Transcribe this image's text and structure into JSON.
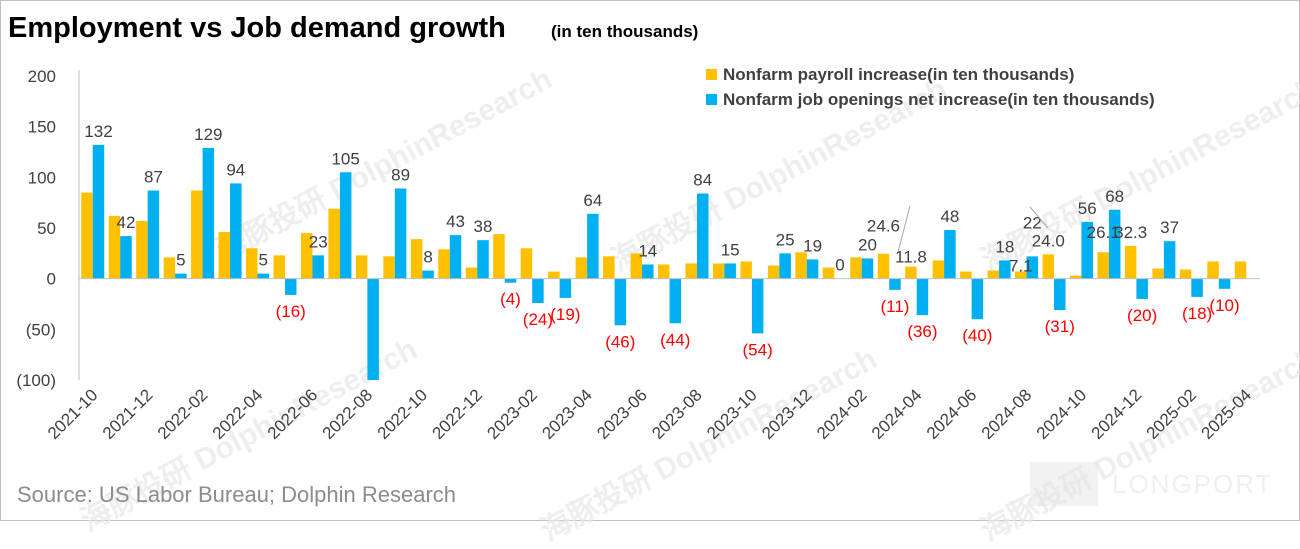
{
  "chart_data": {
    "type": "bar",
    "title": "Employment vs Job demand growth",
    "subtitle": "(in ten thousands)",
    "source": "Source: US Labor Bureau; Dolphin Research",
    "watermarks": [
      "海豚投研",
      "DolphinResearch",
      "LONGPORT"
    ],
    "ylim": [
      -100,
      200
    ],
    "yticks": [
      200,
      150,
      100,
      50,
      0,
      -50,
      -100
    ],
    "ytick_labels": [
      "200",
      "150",
      "100",
      "50",
      "0",
      "(50)",
      "(100)"
    ],
    "legend_position": "top-right",
    "grid": false,
    "colors": {
      "payroll": "#FFC000",
      "openings": "#00B0F0",
      "negative_label": "#FF0000",
      "label": "#404040"
    },
    "categories": [
      "2021-10",
      "2021-11",
      "2021-12",
      "2022-01",
      "2022-02",
      "2022-03",
      "2022-04",
      "2022-05",
      "2022-06",
      "2022-07",
      "2022-08",
      "2022-09",
      "2022-10",
      "2022-11",
      "2022-12",
      "2023-01",
      "2023-02",
      "2023-03",
      "2023-04",
      "2023-05",
      "2023-06",
      "2023-07",
      "2023-08",
      "2023-09",
      "2023-10",
      "2023-11",
      "2023-12",
      "2024-01",
      "2024-02",
      "2024-03",
      "2024-04",
      "2024-05",
      "2024-06",
      "2024-07",
      "2024-08",
      "2024-09",
      "2024-10",
      "2024-11",
      "2024-12",
      "2025-01",
      "2025-02",
      "2025-03",
      "2025-04"
    ],
    "x_tick_labels": [
      "2021-10",
      "2021-12",
      "2022-02",
      "2022-04",
      "2022-06",
      "2022-08",
      "2022-10",
      "2022-12",
      "2023-02",
      "2023-04",
      "2023-06",
      "2023-08",
      "2023-10",
      "2023-12",
      "2024-02",
      "2024-04",
      "2024-06",
      "2024-08",
      "2024-10",
      "2024-12",
      "2025-02",
      "2025-04"
    ],
    "series": [
      {
        "name": "Nonfarm payroll increase(in ten thousands)",
        "values": [
          85,
          62,
          57,
          21,
          87,
          46,
          30,
          23,
          45,
          69,
          23,
          22,
          39,
          29,
          11,
          44,
          30,
          7,
          21,
          22,
          25,
          14,
          15,
          15,
          17,
          13,
          26,
          11,
          21,
          24.6,
          11.8,
          18,
          7,
          8,
          7.1,
          24.0,
          3,
          26.1,
          32.3,
          10,
          9,
          17,
          17
        ]
      },
      {
        "name": "Nonfarm job openings net increase(in ten thousands)",
        "values": [
          132,
          42,
          87,
          5,
          129,
          94,
          5,
          -16,
          23,
          105,
          -100,
          89,
          8,
          43,
          38,
          -4,
          -24,
          -19,
          64,
          -46,
          14,
          -44,
          84,
          15,
          -54,
          25,
          19,
          0,
          20,
          -11,
          -36,
          48,
          -40,
          18,
          22,
          -31,
          56,
          68,
          -20,
          37,
          -18,
          -10,
          null
        ]
      }
    ],
    "data_labels": [
      {
        "i": 0,
        "s": 1,
        "text": "132"
      },
      {
        "i": 1,
        "s": 1,
        "text": "42"
      },
      {
        "i": 2,
        "s": 1,
        "text": "87"
      },
      {
        "i": 3,
        "s": 1,
        "text": "5"
      },
      {
        "i": 4,
        "s": 1,
        "text": "129"
      },
      {
        "i": 5,
        "s": 1,
        "text": "94"
      },
      {
        "i": 6,
        "s": 1,
        "text": "5"
      },
      {
        "i": 7,
        "s": 1,
        "text": "(16)"
      },
      {
        "i": 8,
        "s": 1,
        "text": "23"
      },
      {
        "i": 9,
        "s": 1,
        "text": "105"
      },
      {
        "i": 11,
        "s": 1,
        "text": "89"
      },
      {
        "i": 12,
        "s": 1,
        "text": "8"
      },
      {
        "i": 13,
        "s": 1,
        "text": "43"
      },
      {
        "i": 14,
        "s": 1,
        "text": "38"
      },
      {
        "i": 15,
        "s": 1,
        "text": "(4)"
      },
      {
        "i": 16,
        "s": 1,
        "text": "(24)"
      },
      {
        "i": 17,
        "s": 1,
        "text": "(19)"
      },
      {
        "i": 18,
        "s": 1,
        "text": "64"
      },
      {
        "i": 19,
        "s": 1,
        "text": "(46)"
      },
      {
        "i": 20,
        "s": 1,
        "text": "14"
      },
      {
        "i": 21,
        "s": 1,
        "text": "(44)"
      },
      {
        "i": 22,
        "s": 1,
        "text": "84"
      },
      {
        "i": 23,
        "s": 1,
        "text": "15"
      },
      {
        "i": 24,
        "s": 1,
        "text": "(54)"
      },
      {
        "i": 25,
        "s": 1,
        "text": "25"
      },
      {
        "i": 26,
        "s": 1,
        "text": "19"
      },
      {
        "i": 27,
        "s": 1,
        "text": "0"
      },
      {
        "i": 28,
        "s": 1,
        "text": "20"
      },
      {
        "i": 29,
        "s": 0,
        "text": "24.6"
      },
      {
        "i": 29,
        "s": 1,
        "text": "(11)"
      },
      {
        "i": 30,
        "s": 0,
        "text": "11.8"
      },
      {
        "i": 30,
        "s": 1,
        "text": "(36)"
      },
      {
        "i": 31,
        "s": 1,
        "text": "48"
      },
      {
        "i": 32,
        "s": 1,
        "text": "(40)"
      },
      {
        "i": 33,
        "s": 1,
        "text": "18"
      },
      {
        "i": 34,
        "s": 0,
        "text": "7.1"
      },
      {
        "i": 34,
        "s": 1,
        "text": "22"
      },
      {
        "i": 35,
        "s": 0,
        "text": "24.0"
      },
      {
        "i": 35,
        "s": 1,
        "text": "(31)"
      },
      {
        "i": 36,
        "s": 1,
        "text": "56"
      },
      {
        "i": 37,
        "s": 0,
        "text": "26.1"
      },
      {
        "i": 37,
        "s": 1,
        "text": "68"
      },
      {
        "i": 38,
        "s": 0,
        "text": "32.3"
      },
      {
        "i": 38,
        "s": 1,
        "text": "(20)"
      },
      {
        "i": 39,
        "s": 1,
        "text": "37"
      },
      {
        "i": 40,
        "s": 1,
        "text": "(18)"
      },
      {
        "i": 41,
        "s": 1,
        "text": "(10)"
      }
    ]
  }
}
